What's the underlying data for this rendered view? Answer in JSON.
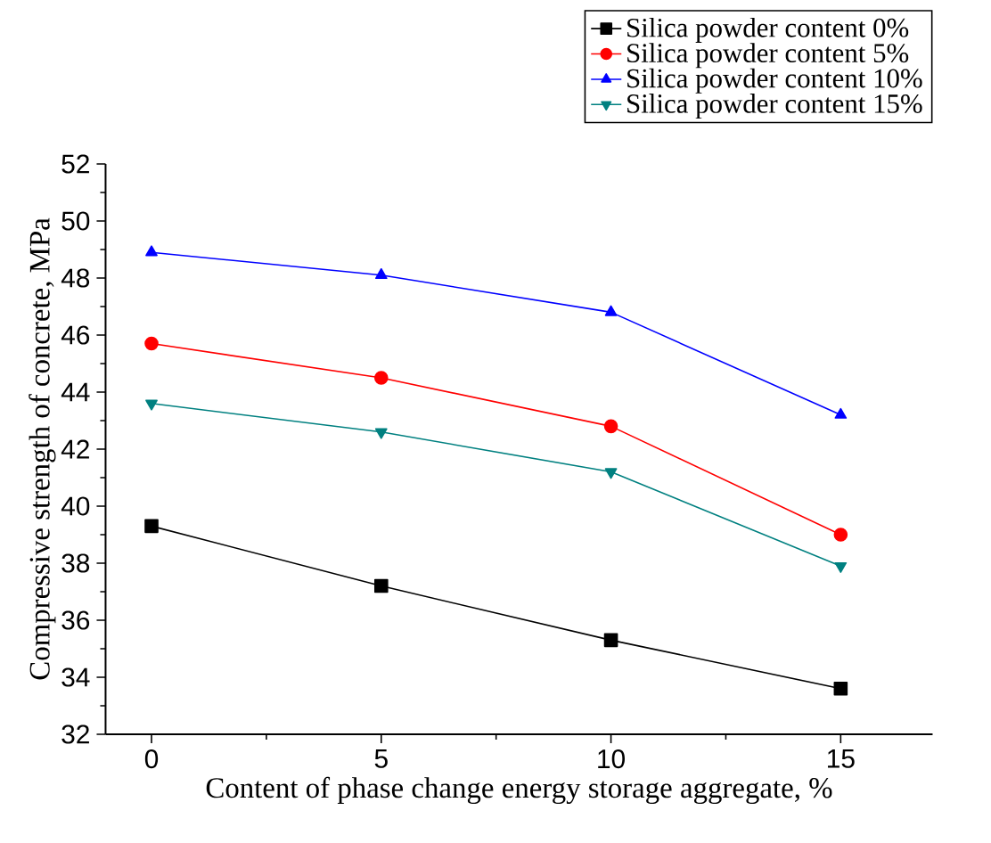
{
  "chart_data": {
    "type": "line",
    "xlabel": "Content of phase change energy storage aggregate, %",
    "ylabel": "Compressive strength of concrete, MPa",
    "x": [
      0,
      5,
      10,
      15
    ],
    "series": [
      {
        "name": "Silica powder content 0%",
        "color": "#000000",
        "marker": "square",
        "values": [
          39.3,
          37.2,
          35.3,
          33.6
        ]
      },
      {
        "name": "Silica powder content 5%",
        "color": "#ff0000",
        "marker": "circle",
        "values": [
          45.7,
          44.5,
          42.8,
          39.0
        ]
      },
      {
        "name": "Silica powder content 10%",
        "color": "#0000ff",
        "marker": "triangle",
        "values": [
          48.9,
          48.1,
          46.8,
          43.2
        ]
      },
      {
        "name": "Silica powder content 15%",
        "color": "#008080",
        "marker": "triangle-down",
        "values": [
          43.6,
          42.6,
          41.2,
          37.9
        ]
      }
    ],
    "xlim": [
      -1,
      17
    ],
    "ylim": [
      32,
      52
    ],
    "xticks": [
      0,
      5,
      10,
      15
    ],
    "yticks": [
      32,
      34,
      36,
      38,
      40,
      42,
      44,
      46,
      48,
      50,
      52
    ],
    "legend": "top right",
    "grid": false,
    "line_style": "solid"
  }
}
